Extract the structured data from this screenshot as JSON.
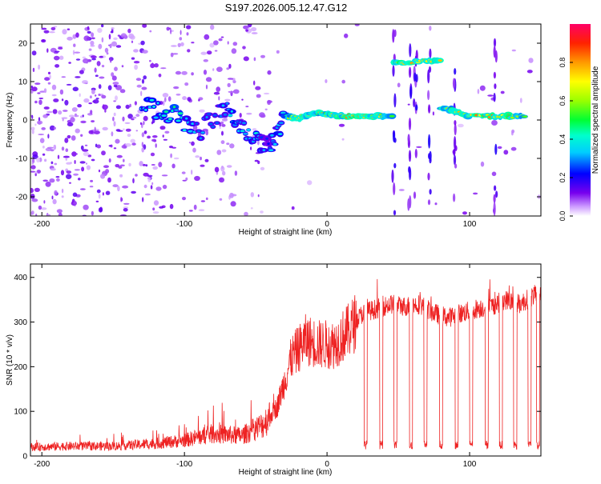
{
  "title": "S197.2026.005.12.47.G12",
  "chart_data": [
    {
      "type": "heatmap",
      "xlabel": "Height of straight line (km)",
      "ylabel": "Frequency (Hz)",
      "xlim": [
        -208,
        150
      ],
      "ylim": [
        -25,
        25
      ],
      "xticks": [
        -200,
        -100,
        0,
        100
      ],
      "yticks": [
        -20,
        -10,
        0,
        10,
        20
      ],
      "colorbar": {
        "label": "Normalized spectral amplitude",
        "range": [
          0,
          1
        ],
        "ticks": [
          "0.0",
          "0.2",
          "0.4",
          "0.6",
          "0.8"
        ],
        "tick_values": [
          0.0,
          0.2,
          0.4,
          0.6,
          0.8
        ]
      },
      "ridge": [
        {
          "x": -130,
          "y": 4,
          "amp": 0.4
        },
        {
          "x": -110,
          "y": 2,
          "amp": 0.45
        },
        {
          "x": -90,
          "y": -3,
          "amp": 0.35
        },
        {
          "x": -70,
          "y": 3,
          "amp": 0.35
        },
        {
          "x": -55,
          "y": -4,
          "amp": 0.4
        },
        {
          "x": -40,
          "y": -7,
          "amp": 0.3
        },
        {
          "x": -30,
          "y": 1,
          "amp": 0.45
        },
        {
          "x": -20,
          "y": 0.5,
          "amp": 0.85
        },
        {
          "x": -10,
          "y": 2,
          "amp": 0.7
        },
        {
          "x": 0,
          "y": 1.5,
          "amp": 0.75
        },
        {
          "x": 10,
          "y": 1,
          "amp": 0.8
        },
        {
          "x": 25,
          "y": 1,
          "amp": 0.85
        },
        {
          "x": 40,
          "y": 1,
          "amp": 0.6
        },
        {
          "x": 53,
          "y": 15,
          "amp": 0.85
        },
        {
          "x": 75,
          "y": 15.5,
          "amp": 0.75
        },
        {
          "x": 85,
          "y": 3,
          "amp": 0.7
        },
        {
          "x": 100,
          "y": 1,
          "amp": 0.8
        },
        {
          "x": 125,
          "y": 1,
          "amp": 0.85
        },
        {
          "x": 140,
          "y": 1,
          "amp": 0.7
        }
      ]
    },
    {
      "type": "line",
      "xlabel": "Height of straight line (km)",
      "ylabel": "SNR (10 * v/v)",
      "xlim": [
        -208,
        150
      ],
      "ylim": [
        0,
        430
      ],
      "xticks": [
        -200,
        -100,
        0,
        100
      ],
      "yticks": [
        0,
        100,
        200,
        300,
        400
      ],
      "series": [
        {
          "name": "SNR",
          "color": "#ee2222",
          "x": [
            -208,
            -180,
            -150,
            -120,
            -100,
            -80,
            -60,
            -45,
            -35,
            -25,
            -15,
            -5,
            5,
            15,
            25,
            35,
            45,
            55,
            65,
            75,
            85,
            95,
            105,
            115,
            125,
            135,
            145,
            150
          ],
          "y": [
            20,
            22,
            22,
            28,
            35,
            50,
            45,
            70,
            110,
            220,
            260,
            250,
            250,
            280,
            320,
            330,
            340,
            335,
            340,
            320,
            310,
            320,
            330,
            335,
            350,
            340,
            360,
            365
          ]
        }
      ],
      "dropouts_x": [
        27,
        38,
        48,
        59,
        69,
        80,
        91,
        101,
        112,
        122,
        132,
        142,
        148
      ],
      "dropout_level": 25
    }
  ]
}
